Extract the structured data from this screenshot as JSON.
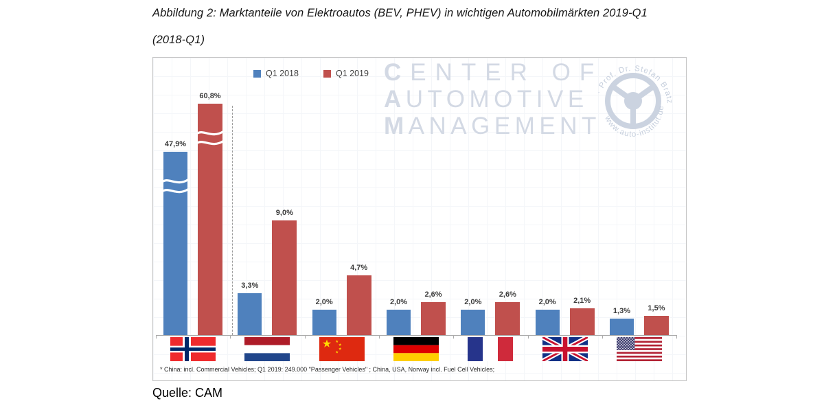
{
  "figure": {
    "title_line1": "Abbildung 2: Marktanteile von Elektroautos (BEV, PHEV) in wichtigen Automobilmärkten 2019-Q1",
    "title_line2": "(2018-Q1)",
    "source": "Quelle: CAM"
  },
  "watermark": {
    "line1": "CENTER OF",
    "line2": "AUTOMOTIVE",
    "line3": "MANAGEMENT",
    "logo_text_top": "· Prof. Dr. Stefan Bratzel ·",
    "logo_text_bottom": "www.auto-institut.de",
    "color": "#D3D9E4"
  },
  "chart_data": {
    "type": "bar",
    "title": "Marktanteile von Elektroautos (BEV, PHEV) in wichtigen Automobilmärkten 2019-Q1 (2018-Q1)",
    "categories": [
      "Norwegen",
      "Niederlande",
      "China",
      "Deutschland",
      "Frankreich",
      "Grossbritannien",
      "USA"
    ],
    "category_display": "flags",
    "unit": "%",
    "series": [
      {
        "name": "Q1 2018",
        "color": "#4F81BD",
        "values": [
          47.9,
          3.3,
          2.0,
          2.0,
          2.0,
          2.0,
          1.3
        ]
      },
      {
        "name": "Q1 2019",
        "color": "#C0504D",
        "values": [
          60.8,
          9.0,
          4.7,
          2.6,
          2.6,
          2.1,
          1.5
        ]
      }
    ],
    "value_labels": [
      [
        "47,9%",
        "3,3%",
        "2,0%",
        "2,0%",
        "2,0%",
        "2,0%",
        "1,3%"
      ],
      [
        "60,8%",
        "9,0%",
        "4,7%",
        "2,6%",
        "2,6%",
        "2,1%",
        "1,5%"
      ]
    ],
    "axis_break": {
      "categories": [
        "Norwegen"
      ],
      "note": "Norway bars truncated with wavy break marks; dashed separator after Norway group"
    },
    "footnote": "* China: incl. Commercial Vehicles; Q1 2019: 249.000 \"Passenger Vehicles\" ; China, USA, Norway incl. Fuel Cell Vehicles;",
    "legend_position": "top",
    "grid": false,
    "y_axis_visible": false,
    "ylim_note": "no visible value axis; bars labeled directly"
  }
}
